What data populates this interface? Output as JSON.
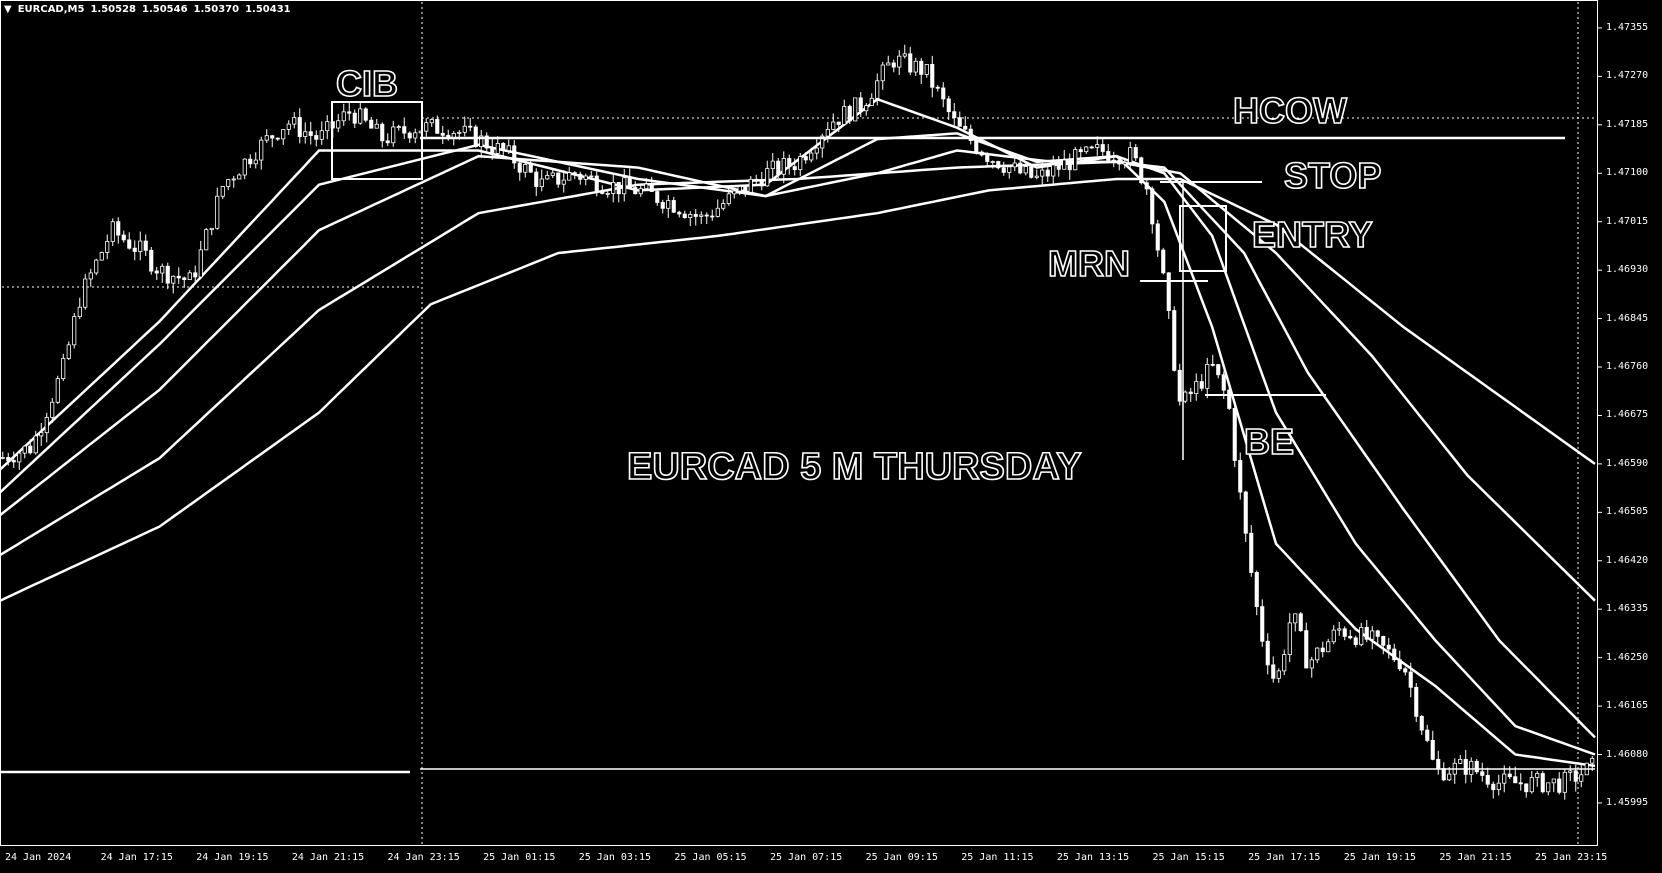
{
  "symbol_bar": {
    "icon": "triangle-down-icon",
    "symbol": "EURCAD,M5",
    "prices": [
      "1.50528",
      "1.50546",
      "1.50370",
      "1.50431"
    ]
  },
  "chart_data": {
    "type": "candlestick",
    "title": "EURCAD 5 M THURSDAY",
    "colors": {
      "background": "#000000",
      "foreground": "#ffffff"
    },
    "grid": false,
    "price_axis": {
      "ticks": [
        "1.47355",
        "1.47270",
        "1.47185",
        "1.47100",
        "1.47015",
        "1.46930",
        "1.46845",
        "1.46760",
        "1.46675",
        "1.46590",
        "1.46505",
        "1.46420",
        "1.46335",
        "1.46250",
        "1.46165",
        "1.46080",
        "1.45995"
      ],
      "range": [
        1.4593,
        1.4739
      ]
    },
    "time_axis": {
      "ticks": [
        "24 Jan 2024",
        "24 Jan 17:15",
        "24 Jan 19:15",
        "24 Jan 21:15",
        "24 Jan 23:15",
        "25 Jan 01:15",
        "25 Jan 03:15",
        "25 Jan 05:15",
        "25 Jan 07:15",
        "25 Jan 09:15",
        "25 Jan 11:15",
        "25 Jan 13:15",
        "25 Jan 15:15",
        "25 Jan 17:15",
        "25 Jan 19:15",
        "25 Jan 21:15",
        "25 Jan 23:15"
      ]
    },
    "price_path": [
      [
        0,
        1.466
      ],
      [
        0.02,
        1.4662
      ],
      [
        0.04,
        1.4676
      ],
      [
        0.05,
        1.4688
      ],
      [
        0.07,
        1.47
      ],
      [
        0.09,
        1.4696
      ],
      [
        0.1,
        1.4693
      ],
      [
        0.12,
        1.4691
      ],
      [
        0.14,
        1.4708
      ],
      [
        0.16,
        1.4714
      ],
      [
        0.18,
        1.4719
      ],
      [
        0.2,
        1.4716
      ],
      [
        0.22,
        1.4721
      ],
      [
        0.24,
        1.4716
      ],
      [
        0.26,
        1.4718
      ],
      [
        0.28,
        1.4718
      ],
      [
        0.3,
        1.4716
      ],
      [
        0.32,
        1.4713
      ],
      [
        0.34,
        1.4708
      ],
      [
        0.36,
        1.471
      ],
      [
        0.38,
        1.4708
      ],
      [
        0.4,
        1.4707
      ],
      [
        0.42,
        1.4705
      ],
      [
        0.44,
        1.4702
      ],
      [
        0.46,
        1.4706
      ],
      [
        0.48,
        1.471
      ],
      [
        0.5,
        1.4712
      ],
      [
        0.52,
        1.4719
      ],
      [
        0.54,
        1.4722
      ],
      [
        0.56,
        1.473
      ],
      [
        0.58,
        1.4728
      ],
      [
        0.6,
        1.4718
      ],
      [
        0.62,
        1.4713
      ],
      [
        0.64,
        1.471
      ],
      [
        0.65,
        1.4709
      ],
      [
        0.67,
        1.4712
      ],
      [
        0.69,
        1.4714
      ],
      [
        0.71,
        1.4713
      ],
      [
        0.72,
        1.4707
      ],
      [
        0.73,
        1.469
      ],
      [
        0.74,
        1.4669
      ],
      [
        0.76,
        1.4676
      ],
      [
        0.77,
        1.467
      ],
      [
        0.78,
        1.4648
      ],
      [
        0.79,
        1.463
      ],
      [
        0.8,
        1.462
      ],
      [
        0.81,
        1.4633
      ],
      [
        0.82,
        1.4624
      ],
      [
        0.84,
        1.463
      ],
      [
        0.86,
        1.4628
      ],
      [
        0.88,
        1.4624
      ],
      [
        0.9,
        1.4605
      ],
      [
        0.92,
        1.4606
      ],
      [
        0.94,
        1.4603
      ],
      [
        0.96,
        1.4603
      ],
      [
        0.98,
        1.4603
      ],
      [
        1,
        1.4606
      ]
    ],
    "moving_averages": [
      {
        "values": [
          [
            0,
            1.4658
          ],
          [
            0.1,
            1.4684
          ],
          [
            0.2,
            1.4714
          ],
          [
            0.3,
            1.4714
          ],
          [
            0.4,
            1.4707
          ],
          [
            0.48,
            1.4708
          ],
          [
            0.55,
            1.4723
          ],
          [
            0.6,
            1.4718
          ],
          [
            0.65,
            1.4711
          ],
          [
            0.7,
            1.4713
          ],
          [
            0.73,
            1.4705
          ],
          [
            0.76,
            1.4683
          ],
          [
            0.8,
            1.4645
          ],
          [
            0.85,
            1.463
          ],
          [
            0.9,
            1.462
          ],
          [
            0.95,
            1.4608
          ],
          [
            1,
            1.4606
          ]
        ]
      },
      {
        "values": [
          [
            0,
            1.4654
          ],
          [
            0.1,
            1.468
          ],
          [
            0.2,
            1.4708
          ],
          [
            0.3,
            1.4715
          ],
          [
            0.4,
            1.4709
          ],
          [
            0.48,
            1.4706
          ],
          [
            0.55,
            1.4716
          ],
          [
            0.6,
            1.4717
          ],
          [
            0.65,
            1.4712
          ],
          [
            0.7,
            1.4713
          ],
          [
            0.73,
            1.471
          ],
          [
            0.76,
            1.4699
          ],
          [
            0.8,
            1.4668
          ],
          [
            0.85,
            1.4645
          ],
          [
            0.9,
            1.4628
          ],
          [
            0.95,
            1.4613
          ],
          [
            1,
            1.4608
          ]
        ]
      },
      {
        "values": [
          [
            0,
            1.465
          ],
          [
            0.1,
            1.4672
          ],
          [
            0.2,
            1.47
          ],
          [
            0.3,
            1.4713
          ],
          [
            0.4,
            1.4711
          ],
          [
            0.48,
            1.4706
          ],
          [
            0.55,
            1.471
          ],
          [
            0.6,
            1.4714
          ],
          [
            0.66,
            1.4712
          ],
          [
            0.7,
            1.4712
          ],
          [
            0.73,
            1.4711
          ],
          [
            0.78,
            1.4696
          ],
          [
            0.82,
            1.4675
          ],
          [
            0.88,
            1.4651
          ],
          [
            0.94,
            1.4628
          ],
          [
            1,
            1.4611
          ]
        ]
      },
      {
        "values": [
          [
            0,
            1.4643
          ],
          [
            0.1,
            1.466
          ],
          [
            0.2,
            1.4686
          ],
          [
            0.3,
            1.4703
          ],
          [
            0.4,
            1.4708
          ],
          [
            0.5,
            1.4709
          ],
          [
            0.6,
            1.4711
          ],
          [
            0.7,
            1.4712
          ],
          [
            0.74,
            1.471
          ],
          [
            0.8,
            1.4696
          ],
          [
            0.86,
            1.4678
          ],
          [
            0.92,
            1.4657
          ],
          [
            1,
            1.4635
          ]
        ]
      },
      {
        "values": [
          [
            0,
            1.4635
          ],
          [
            0.1,
            1.4648
          ],
          [
            0.2,
            1.4668
          ],
          [
            0.27,
            1.4687
          ],
          [
            0.35,
            1.4696
          ],
          [
            0.45,
            1.4699
          ],
          [
            0.55,
            1.4703
          ],
          [
            0.62,
            1.4707
          ],
          [
            0.7,
            1.4709
          ],
          [
            0.74,
            1.4709
          ],
          [
            0.8,
            1.4701
          ],
          [
            0.88,
            1.4683
          ],
          [
            0.95,
            1.4669
          ],
          [
            1,
            1.4659
          ]
        ]
      }
    ],
    "horizontal_levels": [
      1.47185,
      1.47235,
      1.47126,
      1.469,
      1.46755,
      1.46088
    ],
    "annotations": [
      "CIB",
      "HCOW",
      "STOP",
      "ENTRY",
      "MRN",
      "BE"
    ]
  }
}
